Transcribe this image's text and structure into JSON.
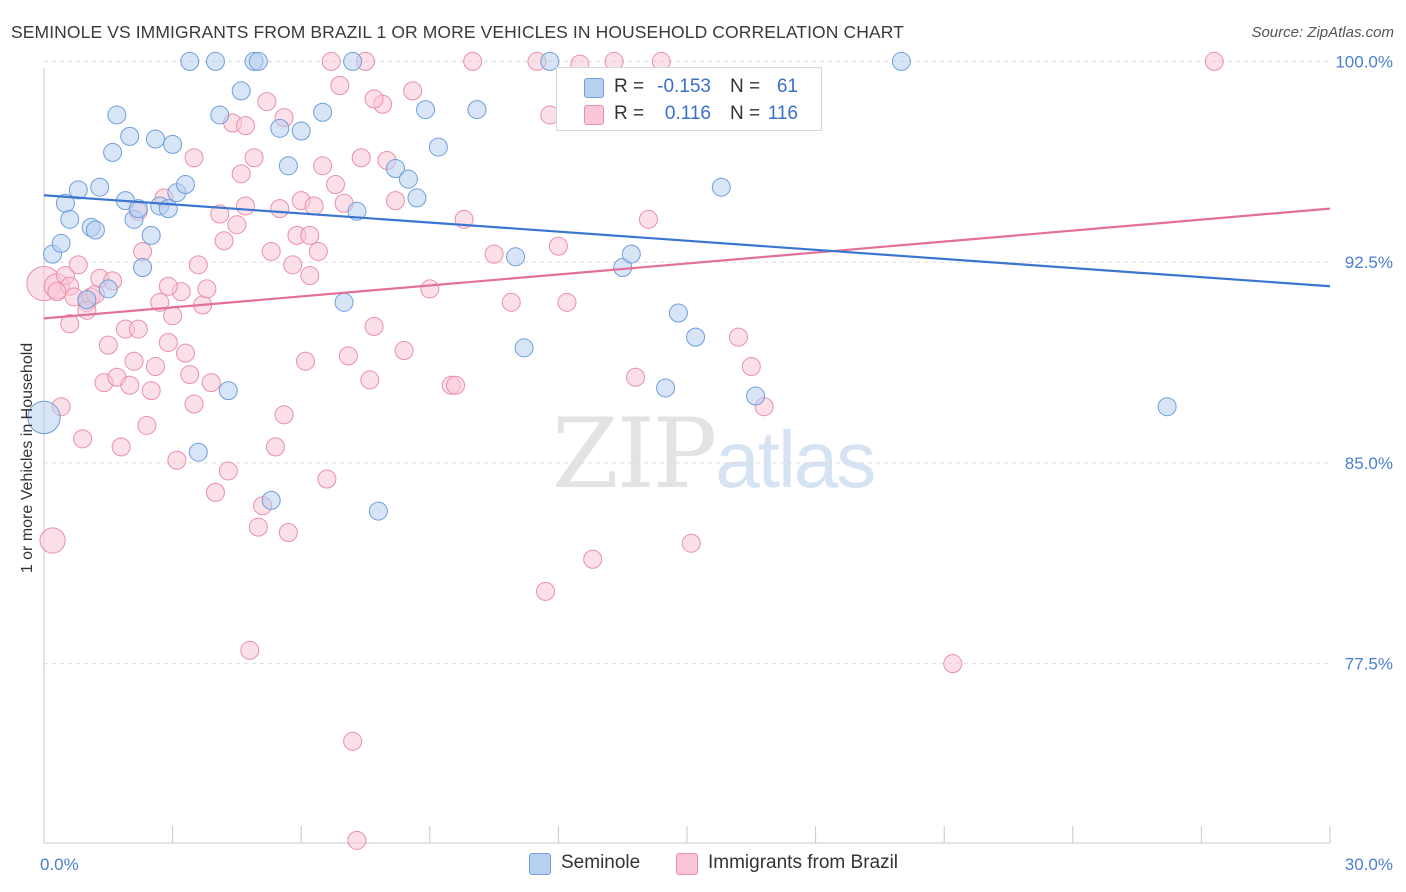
{
  "title": "SEMINOLE VS IMMIGRANTS FROM BRAZIL 1 OR MORE VEHICLES IN HOUSEHOLD CORRELATION CHART",
  "source": "Source: ZipAtlas.com",
  "watermark": {
    "zip": "ZIP",
    "atlas": "atlas"
  },
  "legend": {
    "rows": [
      {
        "r_label": "R =",
        "r_value": "-0.153",
        "n_label": "N =",
        "n_value": "61"
      },
      {
        "r_label": "R =",
        "r_value": "0.116",
        "n_label": "N =",
        "n_value": "116"
      }
    ]
  },
  "bottom_legend": {
    "seminole": "Seminole",
    "brazil": "Immigrants from Brazil"
  },
  "colors": {
    "seminole_fill": "#b8d0f0",
    "seminole_stroke": "#6f9fdc",
    "seminole_line": "#3a76cf",
    "brazil_fill": "#f9c7d6",
    "brazil_stroke": "#ea8fab",
    "brazil_line": "#e27099",
    "grid": "#dcdcdc",
    "tick_text": "#4a7fcf"
  },
  "chart_data": {
    "type": "scatter",
    "title": "SEMINOLE VS IMMIGRANTS FROM BRAZIL 1 OR MORE VEHICLES IN HOUSEHOLD CORRELATION CHART",
    "xlabel": "",
    "ylabel": "1 or more Vehicles in Household",
    "xlim": [
      0,
      30
    ],
    "ylim": [
      70.8,
      100.8
    ],
    "x_tick_labels": [
      {
        "value": 0,
        "label": "0.0%"
      },
      {
        "value": 30,
        "label": "30.0%"
      }
    ],
    "y_tick_labels": [
      {
        "value": 100.0,
        "label": "100.0%"
      },
      {
        "value": 92.5,
        "label": "92.5%"
      },
      {
        "value": 85.0,
        "label": "85.0%"
      },
      {
        "value": 77.5,
        "label": "77.5%"
      }
    ],
    "grid": "horizontal dashed",
    "legend_position": "top-center",
    "series": [
      {
        "name": "Seminole",
        "r": -0.153,
        "n": 61,
        "trend": {
          "x": [
            0,
            30
          ],
          "y": [
            95.0,
            91.6
          ]
        },
        "points": [
          {
            "x": 0.0,
            "y": 86.7,
            "s": 1.8
          },
          {
            "x": 0.2,
            "y": 92.8
          },
          {
            "x": 0.4,
            "y": 93.2
          },
          {
            "x": 0.5,
            "y": 94.7
          },
          {
            "x": 0.6,
            "y": 94.1
          },
          {
            "x": 0.8,
            "y": 95.2
          },
          {
            "x": 1.0,
            "y": 91.1
          },
          {
            "x": 1.1,
            "y": 93.8
          },
          {
            "x": 1.2,
            "y": 93.7
          },
          {
            "x": 1.3,
            "y": 95.3
          },
          {
            "x": 1.5,
            "y": 91.5
          },
          {
            "x": 1.6,
            "y": 96.6
          },
          {
            "x": 1.7,
            "y": 98.0
          },
          {
            "x": 1.9,
            "y": 94.8
          },
          {
            "x": 2.0,
            "y": 97.2
          },
          {
            "x": 2.1,
            "y": 94.1
          },
          {
            "x": 2.2,
            "y": 94.5
          },
          {
            "x": 2.3,
            "y": 92.3
          },
          {
            "x": 2.5,
            "y": 93.5
          },
          {
            "x": 2.6,
            "y": 97.1
          },
          {
            "x": 2.7,
            "y": 94.6
          },
          {
            "x": 2.9,
            "y": 94.5
          },
          {
            "x": 3.0,
            "y": 96.9
          },
          {
            "x": 3.1,
            "y": 95.1
          },
          {
            "x": 3.3,
            "y": 95.4
          },
          {
            "x": 3.4,
            "y": 100.0
          },
          {
            "x": 3.6,
            "y": 85.4
          },
          {
            "x": 4.0,
            "y": 100.0
          },
          {
            "x": 4.1,
            "y": 98.0
          },
          {
            "x": 4.3,
            "y": 87.7
          },
          {
            "x": 4.6,
            "y": 98.9
          },
          {
            "x": 4.9,
            "y": 100.0
          },
          {
            "x": 5.0,
            "y": 100.0
          },
          {
            "x": 5.3,
            "y": 83.6
          },
          {
            "x": 5.5,
            "y": 97.5
          },
          {
            "x": 5.7,
            "y": 96.1
          },
          {
            "x": 6.0,
            "y": 97.4
          },
          {
            "x": 6.5,
            "y": 98.1
          },
          {
            "x": 7.0,
            "y": 91.0
          },
          {
            "x": 7.2,
            "y": 100.0
          },
          {
            "x": 7.3,
            "y": 94.4
          },
          {
            "x": 7.8,
            "y": 83.2
          },
          {
            "x": 8.2,
            "y": 96.0
          },
          {
            "x": 8.5,
            "y": 95.6
          },
          {
            "x": 8.7,
            "y": 94.9
          },
          {
            "x": 8.9,
            "y": 98.2
          },
          {
            "x": 9.2,
            "y": 96.8
          },
          {
            "x": 10.1,
            "y": 98.2
          },
          {
            "x": 11.0,
            "y": 92.7
          },
          {
            "x": 11.2,
            "y": 89.3
          },
          {
            "x": 11.8,
            "y": 100.0
          },
          {
            "x": 12.3,
            "y": 97.8
          },
          {
            "x": 13.5,
            "y": 92.3
          },
          {
            "x": 13.7,
            "y": 92.8
          },
          {
            "x": 14.5,
            "y": 87.8
          },
          {
            "x": 14.8,
            "y": 90.6
          },
          {
            "x": 15.2,
            "y": 89.7
          },
          {
            "x": 15.8,
            "y": 95.3
          },
          {
            "x": 16.6,
            "y": 87.5
          },
          {
            "x": 20.0,
            "y": 100.0
          },
          {
            "x": 26.2,
            "y": 87.1
          }
        ]
      },
      {
        "name": "Immigrants from Brazil",
        "r": 0.116,
        "n": 116,
        "trend": {
          "x": [
            0,
            30
          ],
          "y": [
            90.4,
            94.5
          ]
        },
        "points": [
          {
            "x": 0.0,
            "y": 91.7,
            "s": 1.9
          },
          {
            "x": 0.2,
            "y": 82.1,
            "s": 1.4
          },
          {
            "x": 0.3,
            "y": 91.6,
            "s": 1.4
          },
          {
            "x": 0.4,
            "y": 87.1
          },
          {
            "x": 0.5,
            "y": 92.0
          },
          {
            "x": 0.6,
            "y": 90.2
          },
          {
            "x": 0.6,
            "y": 91.6
          },
          {
            "x": 0.7,
            "y": 91.2
          },
          {
            "x": 0.8,
            "y": 92.4
          },
          {
            "x": 0.9,
            "y": 85.9
          },
          {
            "x": 1.0,
            "y": 91.0
          },
          {
            "x": 1.1,
            "y": 91.2
          },
          {
            "x": 1.2,
            "y": 91.3
          },
          {
            "x": 1.3,
            "y": 91.9
          },
          {
            "x": 1.4,
            "y": 88.0
          },
          {
            "x": 1.5,
            "y": 89.4
          },
          {
            "x": 1.6,
            "y": 91.8
          },
          {
            "x": 1.7,
            "y": 88.2
          },
          {
            "x": 1.8,
            "y": 85.6
          },
          {
            "x": 1.9,
            "y": 90.0
          },
          {
            "x": 2.0,
            "y": 87.9
          },
          {
            "x": 2.1,
            "y": 88.8
          },
          {
            "x": 2.2,
            "y": 94.4
          },
          {
            "x": 2.3,
            "y": 92.9
          },
          {
            "x": 2.4,
            "y": 86.4
          },
          {
            "x": 2.5,
            "y": 87.7
          },
          {
            "x": 2.6,
            "y": 88.6
          },
          {
            "x": 2.7,
            "y": 91.0
          },
          {
            "x": 2.8,
            "y": 94.9
          },
          {
            "x": 2.9,
            "y": 89.5
          },
          {
            "x": 3.0,
            "y": 90.5
          },
          {
            "x": 3.1,
            "y": 85.1
          },
          {
            "x": 3.2,
            "y": 91.4
          },
          {
            "x": 3.3,
            "y": 89.1
          },
          {
            "x": 3.4,
            "y": 88.3
          },
          {
            "x": 3.5,
            "y": 96.4
          },
          {
            "x": 3.6,
            "y": 92.4
          },
          {
            "x": 3.7,
            "y": 90.9
          },
          {
            "x": 3.8,
            "y": 91.5
          },
          {
            "x": 3.9,
            "y": 88.0
          },
          {
            "x": 4.0,
            "y": 83.9
          },
          {
            "x": 4.1,
            "y": 94.3
          },
          {
            "x": 4.2,
            "y": 93.3
          },
          {
            "x": 4.3,
            "y": 84.7
          },
          {
            "x": 4.4,
            "y": 97.7
          },
          {
            "x": 4.5,
            "y": 93.9
          },
          {
            "x": 4.6,
            "y": 95.8
          },
          {
            "x": 4.7,
            "y": 94.6
          },
          {
            "x": 4.8,
            "y": 78.0
          },
          {
            "x": 4.9,
            "y": 96.4
          },
          {
            "x": 5.0,
            "y": 82.6
          },
          {
            "x": 5.1,
            "y": 83.4
          },
          {
            "x": 5.2,
            "y": 98.5
          },
          {
            "x": 5.3,
            "y": 92.9
          },
          {
            "x": 5.4,
            "y": 85.6
          },
          {
            "x": 5.5,
            "y": 94.5
          },
          {
            "x": 5.6,
            "y": 97.9
          },
          {
            "x": 5.7,
            "y": 82.4
          },
          {
            "x": 5.8,
            "y": 92.4
          },
          {
            "x": 5.9,
            "y": 93.5
          },
          {
            "x": 6.0,
            "y": 94.8
          },
          {
            "x": 6.1,
            "y": 88.8
          },
          {
            "x": 6.2,
            "y": 93.5
          },
          {
            "x": 6.3,
            "y": 94.6
          },
          {
            "x": 6.4,
            "y": 92.9
          },
          {
            "x": 6.5,
            "y": 96.1
          },
          {
            "x": 6.6,
            "y": 84.4
          },
          {
            "x": 6.7,
            "y": 100.0
          },
          {
            "x": 6.8,
            "y": 95.4
          },
          {
            "x": 6.9,
            "y": 99.1
          },
          {
            "x": 7.0,
            "y": 94.7
          },
          {
            "x": 7.1,
            "y": 89.0
          },
          {
            "x": 7.2,
            "y": 74.6
          },
          {
            "x": 7.3,
            "y": 70.9
          },
          {
            "x": 7.4,
            "y": 96.4
          },
          {
            "x": 7.5,
            "y": 100.0
          },
          {
            "x": 7.6,
            "y": 88.1
          },
          {
            "x": 7.7,
            "y": 90.1
          },
          {
            "x": 7.9,
            "y": 98.4
          },
          {
            "x": 8.0,
            "y": 96.3
          },
          {
            "x": 8.2,
            "y": 94.8
          },
          {
            "x": 8.4,
            "y": 89.2
          },
          {
            "x": 8.6,
            "y": 98.9
          },
          {
            "x": 9.0,
            "y": 91.5
          },
          {
            "x": 9.5,
            "y": 87.9
          },
          {
            "x": 9.8,
            "y": 94.1
          },
          {
            "x": 10.0,
            "y": 100.0
          },
          {
            "x": 10.5,
            "y": 92.8
          },
          {
            "x": 10.9,
            "y": 91.0
          },
          {
            "x": 11.5,
            "y": 100.0
          },
          {
            "x": 11.7,
            "y": 80.2
          },
          {
            "x": 11.8,
            "y": 98.0
          },
          {
            "x": 12.0,
            "y": 93.1
          },
          {
            "x": 12.2,
            "y": 91.0
          },
          {
            "x": 12.8,
            "y": 81.4
          },
          {
            "x": 13.3,
            "y": 100.0
          },
          {
            "x": 13.8,
            "y": 88.2
          },
          {
            "x": 14.1,
            "y": 94.1
          },
          {
            "x": 14.4,
            "y": 100.0
          },
          {
            "x": 15.1,
            "y": 82.0
          },
          {
            "x": 16.2,
            "y": 89.7
          },
          {
            "x": 16.5,
            "y": 88.6
          },
          {
            "x": 16.8,
            "y": 87.1
          },
          {
            "x": 21.2,
            "y": 77.5
          },
          {
            "x": 27.3,
            "y": 100.0
          },
          {
            "x": 0.3,
            "y": 91.4
          },
          {
            "x": 1.0,
            "y": 90.7
          },
          {
            "x": 2.2,
            "y": 90.0
          },
          {
            "x": 3.5,
            "y": 87.2
          },
          {
            "x": 4.7,
            "y": 97.6
          },
          {
            "x": 6.2,
            "y": 92.0
          },
          {
            "x": 9.6,
            "y": 87.9
          },
          {
            "x": 12.5,
            "y": 99.9
          },
          {
            "x": 7.7,
            "y": 98.6
          },
          {
            "x": 2.9,
            "y": 91.6
          },
          {
            "x": 5.6,
            "y": 86.8
          }
        ]
      }
    ]
  }
}
